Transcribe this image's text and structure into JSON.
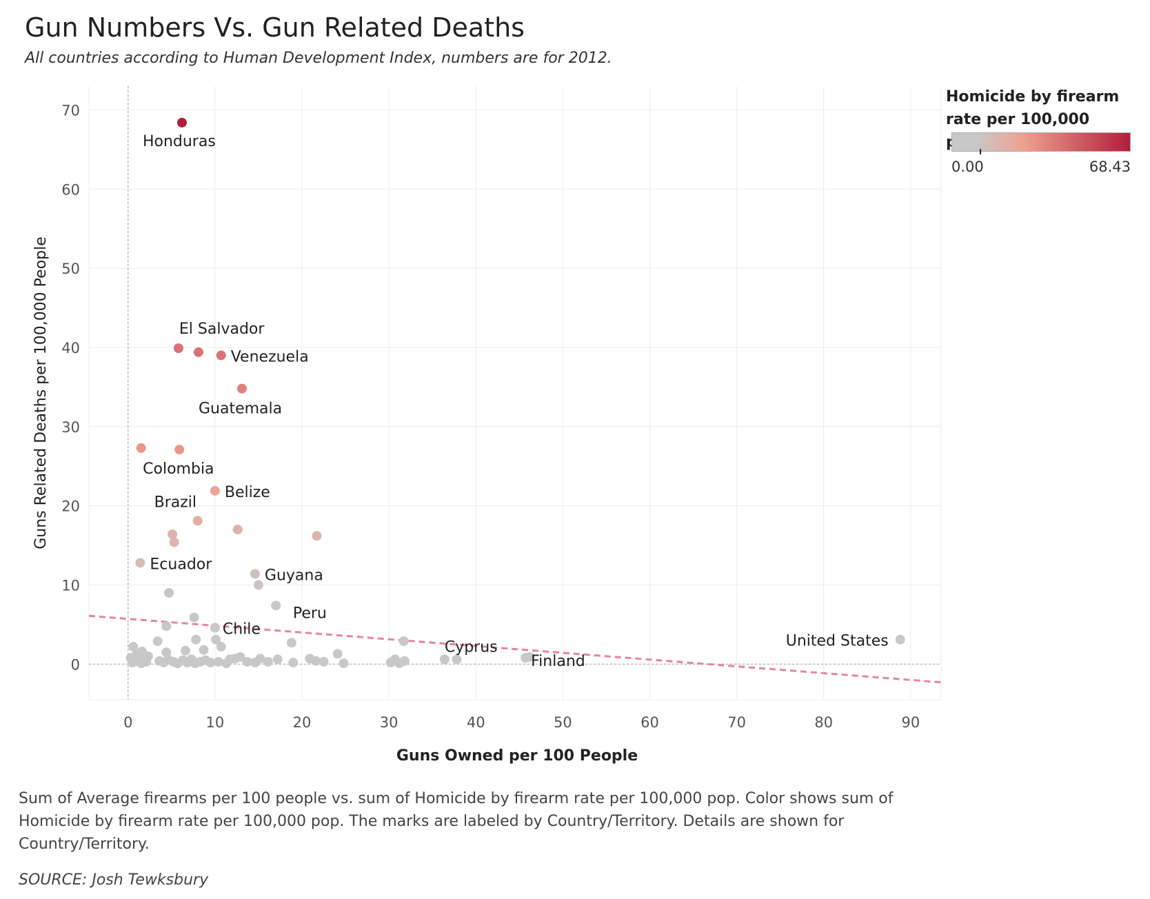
{
  "header": {
    "title": "Gun Numbers Vs. Gun Related Deaths",
    "subtitle": "All countries according to Human Development  Index, numbers are for 2012."
  },
  "legend": {
    "title_line1": "Homicide by firearm",
    "title_line2": "rate per 100,000 people",
    "min_label": "0.00",
    "max_label": "68.43",
    "color_low": "#c8c8c8",
    "color_mid": "#f0a090",
    "color_high": "#b01e3c"
  },
  "footer": {
    "caption": "Sum of Average firearms per 100 people vs. sum of Homicide by firearm rate per 100,000 pop.  Color shows sum of Homicide by firearm rate per 100,000 pop.  The marks are labeled by Country/Territory.  Details are shown for Country/Territory.",
    "source": "SOURCE: Josh Tewksbury"
  },
  "chart_data": {
    "type": "scatter",
    "xlabel": "Guns Owned per 100 People",
    "ylabel": "Guns Related Deaths per 100,000 People",
    "xlim": [
      -4.5,
      93.5
    ],
    "ylim": [
      -4.5,
      73
    ],
    "xticks": [
      0,
      10,
      20,
      30,
      40,
      50,
      60,
      70,
      80,
      90
    ],
    "yticks": [
      0,
      10,
      20,
      30,
      40,
      50,
      60,
      70
    ],
    "grid": true,
    "legend_position": "top-right",
    "trendline": {
      "x": [
        -4.5,
        93.5
      ],
      "y": [
        6.1,
        -2.3
      ],
      "color": "#e882a4",
      "style": "dashed"
    },
    "labeled_points": [
      {
        "label": "Honduras",
        "x": 6.2,
        "y": 68.4
      },
      {
        "label": "El Salvador",
        "x": 5.8,
        "y": 39.9
      },
      {
        "label": "Venezuela",
        "x": 10.7,
        "y": 39.0
      },
      {
        "label": "Guatemala",
        "x": 13.1,
        "y": 34.8
      },
      {
        "label": "Colombia",
        "x": 5.9,
        "y": 27.1
      },
      {
        "label": "Belize",
        "x": 10.0,
        "y": 21.9
      },
      {
        "label": "Brazil",
        "x": 8.0,
        "y": 18.1
      },
      {
        "label": "Ecuador",
        "x": 1.4,
        "y": 12.8
      },
      {
        "label": "Guyana",
        "x": 14.6,
        "y": 11.4
      },
      {
        "label": "Chile",
        "x": 10.0,
        "y": 4.6
      },
      {
        "label": "Peru",
        "x": 18.8,
        "y": 2.7
      },
      {
        "label": "Cyprus",
        "x": 36.4,
        "y": 0.6
      },
      {
        "label": "Finland",
        "x": 45.7,
        "y": 0.8
      },
      {
        "label": "United States",
        "x": 88.8,
        "y": 3.1
      }
    ],
    "other_points": [
      {
        "x": 8.1,
        "y": 39.4
      },
      {
        "x": 1.5,
        "y": 27.3
      },
      {
        "x": 5.1,
        "y": 16.4
      },
      {
        "x": 5.3,
        "y": 15.4
      },
      {
        "x": 12.6,
        "y": 17.0
      },
      {
        "x": 21.7,
        "y": 16.2
      },
      {
        "x": 15.0,
        "y": 10.0
      },
      {
        "x": 4.7,
        "y": 9.0
      },
      {
        "x": 17.0,
        "y": 7.4
      },
      {
        "x": 7.6,
        "y": 5.9
      },
      {
        "x": 4.4,
        "y": 4.8
      },
      {
        "x": 3.4,
        "y": 2.9
      },
      {
        "x": 7.8,
        "y": 3.1
      },
      {
        "x": 10.1,
        "y": 3.1
      },
      {
        "x": 10.7,
        "y": 2.2
      },
      {
        "x": 0.6,
        "y": 2.2
      },
      {
        "x": 31.7,
        "y": 2.9
      },
      {
        "x": 6.6,
        "y": 1.7
      },
      {
        "x": 8.7,
        "y": 1.8
      },
      {
        "x": 4.4,
        "y": 1.5
      },
      {
        "x": 24.1,
        "y": 1.3
      },
      {
        "x": 1.6,
        "y": 1.6
      },
      {
        "x": 0.5,
        "y": 0.2
      },
      {
        "x": 0.9,
        "y": 0.4
      },
      {
        "x": 1.2,
        "y": 0.9
      },
      {
        "x": 1.5,
        "y": 0.1
      },
      {
        "x": 1.8,
        "y": 0.7
      },
      {
        "x": 2.1,
        "y": 0.3
      },
      {
        "x": 3.6,
        "y": 0.4
      },
      {
        "x": 4.1,
        "y": 0.2
      },
      {
        "x": 4.6,
        "y": 0.6
      },
      {
        "x": 5.2,
        "y": 0.3
      },
      {
        "x": 5.7,
        "y": 0.1
      },
      {
        "x": 6.3,
        "y": 0.5
      },
      {
        "x": 6.8,
        "y": 0.2
      },
      {
        "x": 7.3,
        "y": 0.6
      },
      {
        "x": 7.7,
        "y": 0.1
      },
      {
        "x": 8.3,
        "y": 0.3
      },
      {
        "x": 8.9,
        "y": 0.5
      },
      {
        "x": 9.5,
        "y": 0.2
      },
      {
        "x": 10.4,
        "y": 0.3
      },
      {
        "x": 11.3,
        "y": 0.1
      },
      {
        "x": 11.7,
        "y": 0.6
      },
      {
        "x": 12.3,
        "y": 0.7
      },
      {
        "x": 12.9,
        "y": 0.9
      },
      {
        "x": 13.7,
        "y": 0.3
      },
      {
        "x": 14.6,
        "y": 0.2
      },
      {
        "x": 15.2,
        "y": 0.7
      },
      {
        "x": 16.1,
        "y": 0.3
      },
      {
        "x": 17.2,
        "y": 0.6
      },
      {
        "x": 19.0,
        "y": 0.2
      },
      {
        "x": 20.9,
        "y": 0.7
      },
      {
        "x": 21.6,
        "y": 0.4
      },
      {
        "x": 22.5,
        "y": 0.3
      },
      {
        "x": 24.8,
        "y": 0.1
      },
      {
        "x": 30.2,
        "y": 0.2
      },
      {
        "x": 30.7,
        "y": 0.6
      },
      {
        "x": 31.2,
        "y": 0.1
      },
      {
        "x": 31.8,
        "y": 0.4
      },
      {
        "x": 37.8,
        "y": 0.6
      },
      {
        "x": 46.2,
        "y": 0.9
      },
      {
        "x": 1.0,
        "y": 1.2
      },
      {
        "x": 2.3,
        "y": 1.0
      },
      {
        "x": 0.3,
        "y": 0.8
      }
    ]
  }
}
